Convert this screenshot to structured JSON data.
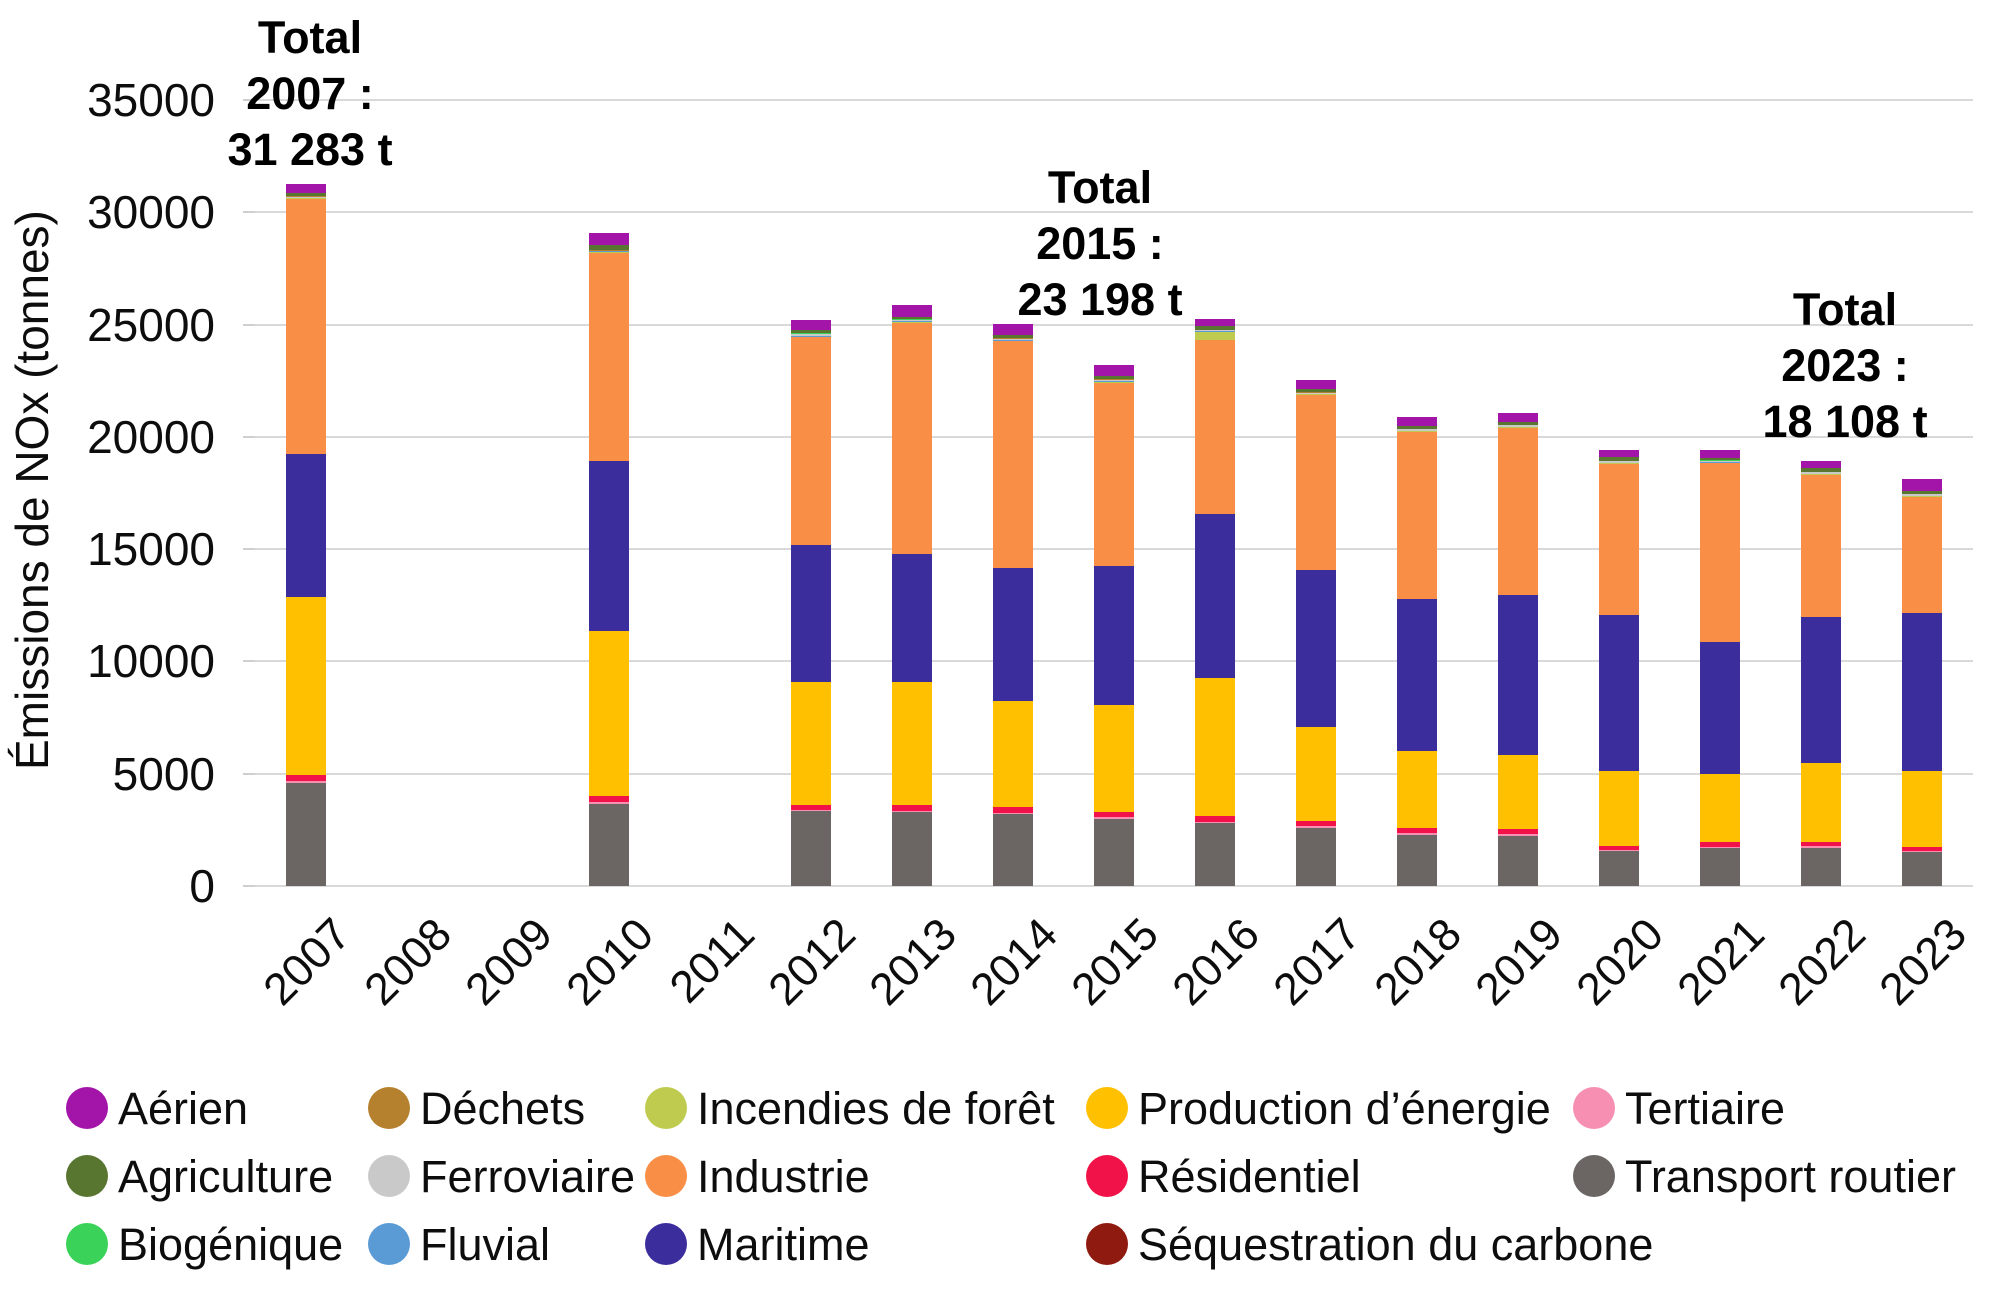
{
  "y_axis": {
    "title": "Émissions de NOx (tonnes)",
    "ticks": [
      "0",
      "5000",
      "10000",
      "15000",
      "20000",
      "25000",
      "30000",
      "35000"
    ],
    "max": 35000
  },
  "annotations": [
    {
      "id": "total-2007",
      "lines": [
        "Total",
        "2007 :",
        "31 283 t"
      ]
    },
    {
      "id": "total-2015",
      "lines": [
        "Total",
        "2015 :",
        "23 198 t"
      ]
    },
    {
      "id": "total-2023",
      "lines": [
        "Total",
        "2023 :",
        "18 108 t"
      ]
    }
  ],
  "legend": {
    "rows": [
      [
        "Aérien",
        "Déchets",
        "Incendies de forêt",
        "Production d’énergie",
        "Tertiaire"
      ],
      [
        "Agriculture",
        "Ferroviaire",
        "Industrie",
        "Résidentiel",
        "Transport routier"
      ],
      [
        "Biogénique",
        "Fluvial",
        "Maritime",
        "Séquestration du carbone"
      ]
    ]
  },
  "colors": {
    "Aérien": "#a215a8",
    "Agriculture": "#597630",
    "Biogénique": "#3bd25a",
    "Déchets": "#b5812e",
    "Ferroviaire": "#c9c9c9",
    "Fluvial": "#5b9bd5",
    "Incendies de forêt": "#becb4e",
    "Industrie": "#f98f46",
    "Maritime": "#3b2e9c",
    "Production d’énergie": "#ffc000",
    "Résidentiel": "#f01248",
    "Séquestration du carbone": "#8f1a10",
    "Tertiaire": "#f78fb3",
    "Transport routier": "#6b6663",
    "gridline": "#d9d9d9"
  },
  "chart_data": {
    "type": "bar",
    "stacked": true,
    "unit": "tonnes",
    "grid": true,
    "legend_position": "bottom",
    "ylim": [
      0,
      35000
    ],
    "ylabel": "Émissions de NOx (tonnes)",
    "categories": [
      "2007",
      "2008",
      "2009",
      "2010",
      "2011",
      "2012",
      "2013",
      "2014",
      "2015",
      "2016",
      "2017",
      "2018",
      "2019",
      "2020",
      "2021",
      "2022",
      "2023"
    ],
    "totals_labeled": {
      "2007": 31283,
      "2015": 23198,
      "2023": 18108
    },
    "series": [
      {
        "name": "Transport routier",
        "color": "#6b6663",
        "values": [
          4600,
          0,
          0,
          3650,
          0,
          3320,
          3300,
          3200,
          3000,
          2800,
          2580,
          2290,
          2230,
          1560,
          1680,
          1700,
          1520
        ]
      },
      {
        "name": "Tertiaire",
        "color": "#f78fb3",
        "values": [
          60,
          0,
          0,
          70,
          0,
          60,
          60,
          60,
          60,
          60,
          80,
          80,
          90,
          50,
          70,
          60,
          50
        ]
      },
      {
        "name": "Séquestration du carbone",
        "color": "#8f1a10",
        "values": [
          0,
          0,
          0,
          0,
          0,
          0,
          0,
          0,
          0,
          0,
          0,
          0,
          0,
          0,
          0,
          0,
          0
        ]
      },
      {
        "name": "Résidentiel",
        "color": "#f01248",
        "values": [
          280,
          0,
          0,
          300,
          0,
          210,
          260,
          250,
          220,
          270,
          230,
          200,
          220,
          180,
          200,
          180,
          180
        ]
      },
      {
        "name": "Production d’énergie",
        "color": "#ffc000",
        "values": [
          7950,
          0,
          0,
          7330,
          0,
          5490,
          5480,
          4750,
          4780,
          6150,
          4190,
          3430,
          3285,
          3330,
          3040,
          3520,
          3360
        ]
      },
      {
        "name": "Maritime",
        "color": "#3b2e9c",
        "values": [
          6350,
          0,
          0,
          7570,
          0,
          6120,
          5700,
          5900,
          6210,
          7270,
          7010,
          6780,
          7135,
          6960,
          5880,
          6540,
          7070
        ]
      },
      {
        "name": "Industrie",
        "color": "#f98f46",
        "values": [
          11350,
          0,
          0,
          9260,
          0,
          9240,
          10290,
          10100,
          8150,
          7750,
          7770,
          7450,
          7450,
          6720,
          7950,
          6320,
          5150
        ]
      },
      {
        "name": "Incendies de forêt",
        "color": "#becb4e",
        "values": [
          30,
          0,
          0,
          60,
          0,
          30,
          30,
          30,
          30,
          390,
          30,
          30,
          30,
          30,
          30,
          30,
          30
        ]
      },
      {
        "name": "Fluvial",
        "color": "#5b9bd5",
        "values": [
          20,
          0,
          0,
          20,
          0,
          20,
          20,
          20,
          20,
          20,
          20,
          20,
          20,
          20,
          20,
          20,
          20
        ]
      },
      {
        "name": "Ferroviaire",
        "color": "#c9c9c9",
        "values": [
          60,
          0,
          0,
          40,
          0,
          90,
          60,
          60,
          80,
          40,
          60,
          60,
          60,
          60,
          60,
          60,
          60
        ]
      },
      {
        "name": "Déchets",
        "color": "#b5812e",
        "values": [
          20,
          0,
          0,
          20,
          0,
          20,
          20,
          20,
          20,
          10,
          20,
          20,
          20,
          20,
          20,
          20,
          20
        ]
      },
      {
        "name": "Biogénique",
        "color": "#3bd25a",
        "values": [
          10,
          0,
          0,
          10,
          0,
          10,
          10,
          10,
          10,
          10,
          10,
          10,
          10,
          10,
          10,
          10,
          10
        ]
      },
      {
        "name": "Agriculture",
        "color": "#597630",
        "values": [
          150,
          0,
          0,
          220,
          0,
          150,
          130,
          130,
          150,
          180,
          120,
          120,
          130,
          150,
          120,
          140,
          140
        ]
      },
      {
        "name": "Aérien",
        "color": "#a215a8",
        "values": [
          403,
          0,
          0,
          520,
          0,
          470,
          500,
          510,
          468,
          320,
          430,
          410,
          390,
          340,
          360,
          350,
          498
        ]
      }
    ]
  }
}
